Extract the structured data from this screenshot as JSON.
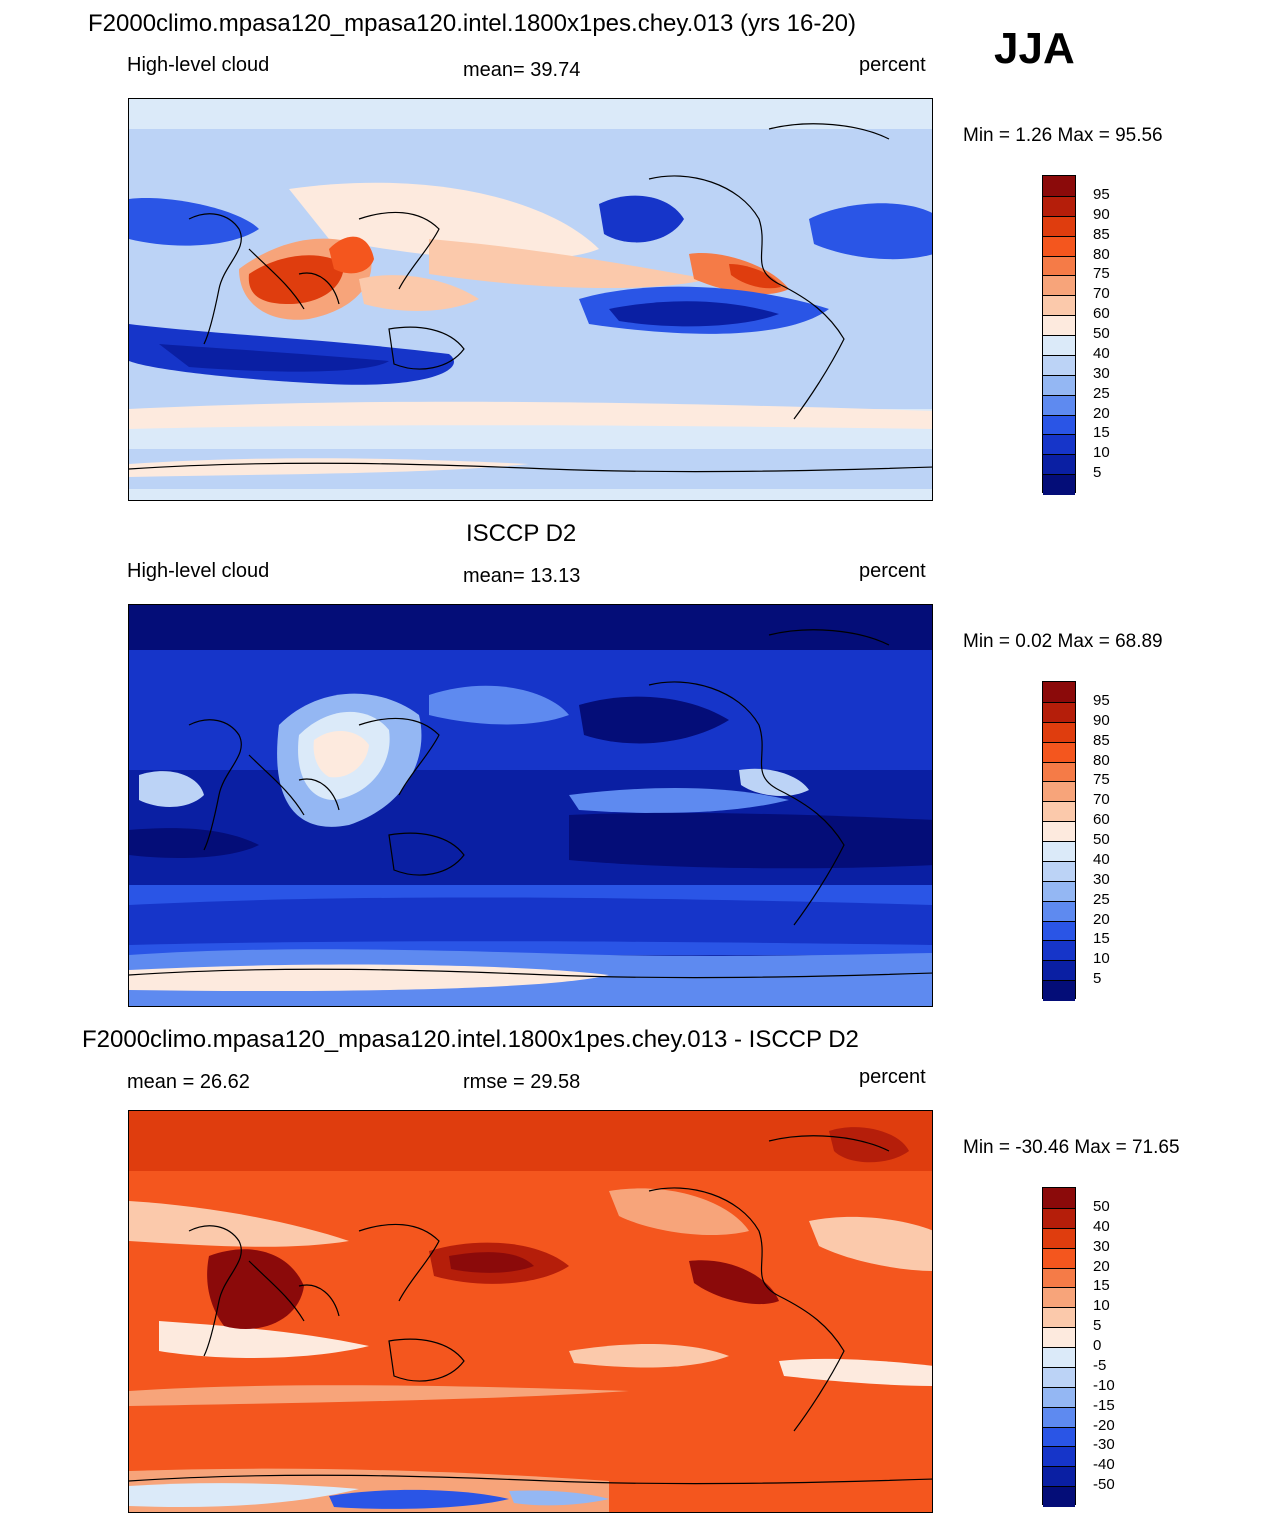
{
  "header": {
    "case_title": "F2000climo.mpasa120_mpasa120.intel.1800x1pes.chey.013 (yrs 16-20)",
    "season": "JJA"
  },
  "panels": [
    {
      "id": "model",
      "title": "F2000climo.mpasa120_mpasa120.intel.1800x1pes.chey.013 (yrs 16-20)",
      "left_label": "High-level cloud",
      "center_label": "mean=  39.74",
      "right_label": "percent",
      "minmax": "Min =   1.26 Max =  95.56",
      "colorbar_ticks": [
        "95",
        "90",
        "85",
        "80",
        "75",
        "70",
        "60",
        "50",
        "40",
        "30",
        "25",
        "20",
        "15",
        "10",
        "5"
      ]
    },
    {
      "id": "obs",
      "title": "ISCCP D2",
      "left_label": "High-level cloud",
      "center_label": "mean=  13.13",
      "right_label": "percent",
      "minmax": "Min =   0.02 Max =  68.89",
      "colorbar_ticks": [
        "95",
        "90",
        "85",
        "80",
        "75",
        "70",
        "60",
        "50",
        "40",
        "30",
        "25",
        "20",
        "15",
        "10",
        "5"
      ]
    },
    {
      "id": "diff",
      "title": "F2000climo.mpasa120_mpasa120.intel.1800x1pes.chey.013 - ISCCP D2",
      "left_label": "mean =  26.62",
      "center_label": "rmse =  29.58",
      "right_label": "percent",
      "minmax": "Min = -30.46 Max =  71.65",
      "colorbar_ticks": [
        "50",
        "40",
        "30",
        "20",
        "15",
        "10",
        "5",
        "0",
        "-5",
        "-10",
        "-15",
        "-20",
        "-30",
        "-40",
        "-50"
      ]
    }
  ],
  "chart_data": [
    {
      "type": "heatmap",
      "title": "F2000climo.mpasa120_mpasa120.intel.1800x1pes.chey.013 (yrs 16-20)",
      "variable": "High-level cloud",
      "units": "percent",
      "season": "JJA",
      "mean": 39.74,
      "min": 1.26,
      "max": 95.56,
      "contour_levels": [
        5,
        10,
        15,
        20,
        25,
        30,
        40,
        50,
        60,
        70,
        75,
        80,
        85,
        90,
        95
      ]
    },
    {
      "type": "heatmap",
      "title": "ISCCP D2",
      "variable": "High-level cloud",
      "units": "percent",
      "season": "JJA",
      "mean": 13.13,
      "min": 0.02,
      "max": 68.89,
      "contour_levels": [
        5,
        10,
        15,
        20,
        25,
        30,
        40,
        50,
        60,
        70,
        75,
        80,
        85,
        90,
        95
      ]
    },
    {
      "type": "heatmap",
      "title": "F2000climo.mpasa120_mpasa120.intel.1800x1pes.chey.013 - ISCCP D2",
      "variable": "High-level cloud difference",
      "units": "percent",
      "season": "JJA",
      "mean": 26.62,
      "rmse": 29.58,
      "min": -30.46,
      "max": 71.65,
      "contour_levels": [
        -50,
        -40,
        -30,
        -20,
        -15,
        -10,
        -5,
        0,
        5,
        10,
        15,
        20,
        30,
        40,
        50
      ]
    }
  ],
  "colors": {
    "palette_top_to_bottom": [
      "#8b0a0a",
      "#b51e0a",
      "#df3d0e",
      "#f4561e",
      "#f57b47",
      "#f7a47a",
      "#fbc9ab",
      "#fdeade",
      "#dbeaf9",
      "#bcd3f6",
      "#94b7f3",
      "#5e8af0",
      "#2a55e6",
      "#1635c9",
      "#0a1fa3",
      "#040d78"
    ]
  }
}
